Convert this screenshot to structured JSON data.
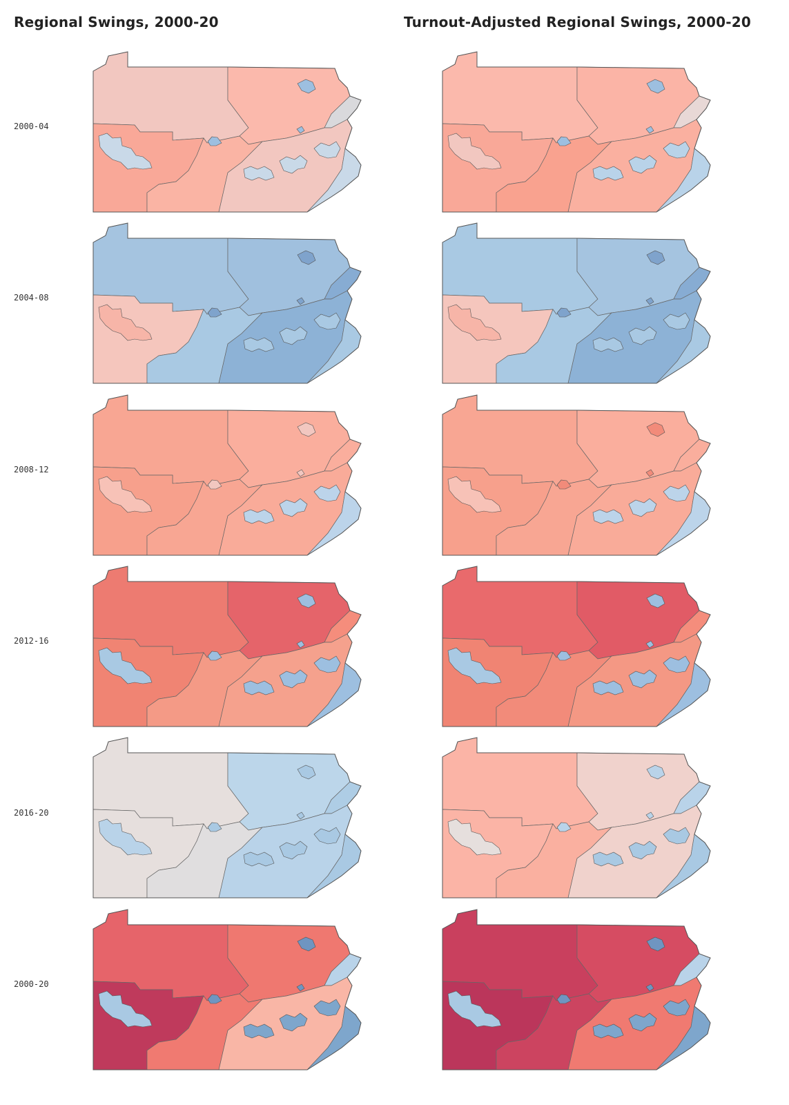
{
  "titles": {
    "left": "Regional Swings, 2000-20",
    "right": "Turnout-Adjusted Regional Swings, 2000-20"
  },
  "rows": [
    {
      "label": "2000-04",
      "left": {
        "nw": "#f2c7c0",
        "ne": "#fbb9ac",
        "sw": "#f9a898",
        "sc": "#fab4a4",
        "se": "#f2c7c0",
        "ex": "#d9d9dc",
        "phl": "#c9d9e8",
        "pit": "#c9d9e8",
        "city": "#9dbfe0"
      },
      "right": {
        "nw": "#fbb9ac",
        "ne": "#fbb4a6",
        "sw": "#f9a898",
        "sc": "#f9a28f",
        "se": "#fab0a0",
        "ex": "#e8d8d6",
        "phl": "#b9d3e9",
        "pit": "#f2c7c0",
        "city": "#9dbfe0"
      }
    },
    {
      "label": "2004-08",
      "left": {
        "nw": "#a5c4e0",
        "ne": "#a0c0de",
        "sw": "#f5c6bd",
        "sc": "#a9c9e3",
        "se": "#8db2d6",
        "ex": "#87acd3",
        "phl": "#a9c9e3",
        "pit": "#f7b5a8",
        "city": "#7fa3cc"
      },
      "right": {
        "nw": "#a9c9e3",
        "ne": "#a5c4e0",
        "sw": "#f5c6bd",
        "sc": "#a9c9e3",
        "se": "#8db2d6",
        "ex": "#87acd3",
        "phl": "#a9c9e3",
        "pit": "#f7b5a8",
        "city": "#7fa3cc"
      }
    },
    {
      "label": "2008-12",
      "left": {
        "nw": "#f8a693",
        "ne": "#faae9d",
        "sw": "#f7a08c",
        "sc": "#f8a693",
        "se": "#f9ab99",
        "ex": "#faae9d",
        "phl": "#bcd4ea",
        "pit": "#f7c2b7",
        "city": "#f2c7c0"
      },
      "right": {
        "nw": "#f8a693",
        "ne": "#faae9d",
        "sw": "#f7a08c",
        "sc": "#f8a693",
        "se": "#f9ab99",
        "ex": "#faae9d",
        "phl": "#bcd4ea",
        "pit": "#f7c2b7",
        "city": "#f28b7a"
      }
    },
    {
      "label": "2012-16",
      "left": {
        "nw": "#ed7b71",
        "ne": "#e5646a",
        "sw": "#f08473",
        "sc": "#f49a86",
        "se": "#f5a18d",
        "ex": "#f58d7c",
        "phl": "#9dbfe0",
        "pit": "#a9c9e3",
        "city": "#9dbfe0"
      },
      "right": {
        "nw": "#e96a6c",
        "ne": "#e15b66",
        "sw": "#f08473",
        "sc": "#f28b7a",
        "se": "#f49884",
        "ex": "#f58d7c",
        "phl": "#9dbfe0",
        "pit": "#a9c9e3",
        "city": "#9dbfe0"
      }
    },
    {
      "label": "2016-20",
      "left": {
        "nw": "#e6dfdd",
        "ne": "#bcd6ea",
        "sw": "#e6dfdd",
        "sc": "#e0dedf",
        "se": "#b9d3e9",
        "ex": "#aecde5",
        "phl": "#a9c9e3",
        "pit": "#b9d3e9",
        "city": "#a9c9e3"
      },
      "right": {
        "nw": "#fbb4a6",
        "ne": "#f0d2cc",
        "sw": "#fbb4a6",
        "sc": "#fab0a0",
        "se": "#f0d2cc",
        "ex": "#b9d3e9",
        "phl": "#a9c9e3",
        "pit": "#e6dfdd",
        "city": "#b9d3e9"
      }
    },
    {
      "label": "2000-20",
      "left": {
        "nw": "#e6646a",
        "ne": "#ef7870",
        "sw": "#bf3a5c",
        "sc": "#f07a71",
        "se": "#f9b6a6",
        "ex": "#b9d3e9",
        "phl": "#7ea6cc",
        "pit": "#a9c9e3",
        "city": "#6f95c1"
      },
      "right": {
        "nw": "#c9405e",
        "ne": "#d64c62",
        "sw": "#bb365b",
        "sc": "#cc4460",
        "se": "#f07a71",
        "ex": "#b9d3e9",
        "phl": "#7ea6cc",
        "pit": "#a9c9e3",
        "city": "#6f95c1"
      }
    }
  ]
}
